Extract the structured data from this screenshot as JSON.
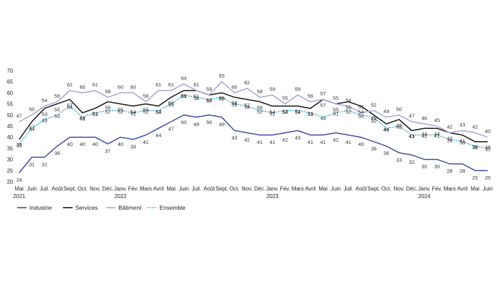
{
  "chart_data": {
    "type": "line",
    "title": "",
    "xlabel": "",
    "ylabel": "",
    "ylim": [
      20,
      70
    ],
    "yticks": [
      20,
      25,
      30,
      35,
      40,
      45,
      50,
      55,
      60,
      65,
      70
    ],
    "grid": false,
    "legend_position": "bottom-left",
    "x": [
      "Mai",
      "Juin",
      "Juil.",
      "Août",
      "Sept.",
      "Oct.",
      "Nov.",
      "Déc.",
      "Janv.",
      "Fév.",
      "Mars",
      "Avril",
      "Mai",
      "Juin",
      "Juil.",
      "Août",
      "Sept.",
      "Oct.",
      "Nov.",
      "Déc.",
      "Janv.",
      "Fév.",
      "Mars",
      "Avril",
      "Mai",
      "Juin",
      "Juil.",
      "Août",
      "Sept.",
      "Oct.",
      "Nov.",
      "Déc.",
      "Janv.",
      "Fév.",
      "Mars",
      "Avril",
      "Mai",
      "Juin"
    ],
    "year_labels": [
      {
        "index": 0,
        "label": "2021"
      },
      {
        "index": 8,
        "label": "2022"
      },
      {
        "index": 20,
        "label": "2023"
      },
      {
        "index": 32,
        "label": "2024"
      }
    ],
    "series": [
      {
        "name": "Industrie",
        "color": "#3b4ba0",
        "style": "solid",
        "values": [
          24,
          31,
          31,
          36,
          40,
          40,
          40,
          37,
          40,
          39,
          41,
          44,
          47,
          50,
          49,
          50,
          49,
          43,
          42,
          41,
          41,
          42,
          43,
          41,
          41,
          42,
          41,
          40,
          38,
          36,
          33,
          32,
          30,
          30,
          28,
          28,
          25,
          25
        ]
      },
      {
        "name": "Services",
        "color": "#111111",
        "style": "solid",
        "values": [
          39,
          47,
          53,
          55,
          57,
          51,
          53,
          56,
          55,
          54,
          55,
          54,
          58,
          61,
          61,
          59,
          60,
          58,
          57,
          56,
          54,
          54,
          54,
          53,
          57,
          55,
          56,
          54,
          50,
          46,
          48,
          43,
          44,
          44,
          42,
          41,
          38,
          38
        ]
      },
      {
        "name": "Bâtiment",
        "color": "#a3a3d2",
        "style": "solid",
        "values": [
          47,
          50,
          54,
          56,
          61,
          60,
          61,
          58,
          60,
          60,
          56,
          61,
          61,
          64,
          61,
          59,
          65,
          60,
          62,
          58,
          59,
          55,
          59,
          56,
          57,
          55,
          54,
          51,
          52,
          49,
          50,
          47,
          46,
          45,
          42,
          43,
          42,
          40
        ]
      },
      {
        "name": "Ensemble",
        "color": "#1aa2c8",
        "style": "dotted",
        "values": [
          37,
          44,
          48,
          50,
          54,
          49,
          51,
          52,
          52,
          51,
          52,
          52,
          55,
          59,
          58,
          57,
          58,
          55,
          54,
          52,
          51,
          52,
          52,
          51,
          49,
          51,
          52,
          50,
          49,
          44,
          45,
          41,
          41,
          41,
          39,
          38,
          36,
          35
        ]
      }
    ]
  }
}
